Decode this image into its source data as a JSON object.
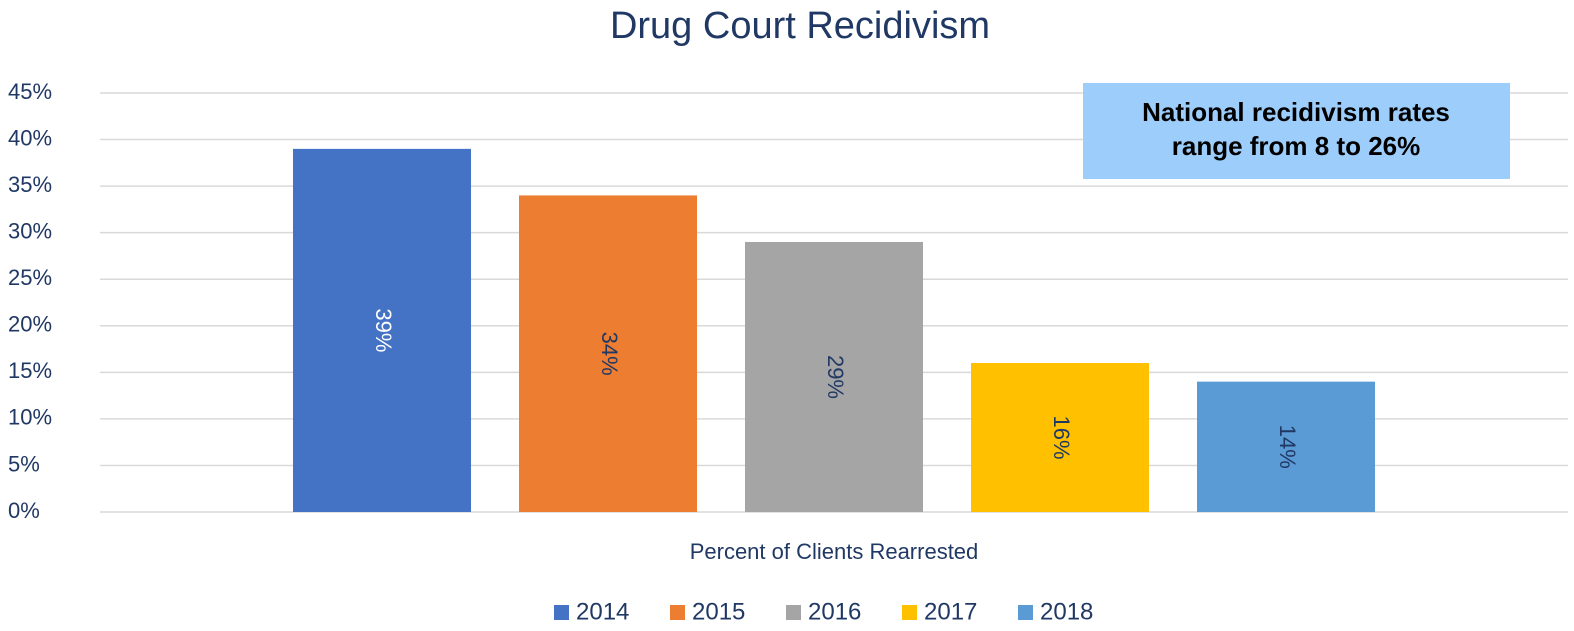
{
  "chart_data": {
    "type": "bar",
    "title": "Drug Court Recidivism",
    "categories": [
      "Percent of Clients Rearrested"
    ],
    "series": [
      {
        "name": "2014",
        "color": "#4472c4",
        "label_color": "#ffffff",
        "values": [
          39
        ],
        "value_labels": [
          "39%"
        ]
      },
      {
        "name": "2015",
        "color": "#ed7d31",
        "label_color": "#203864",
        "values": [
          34
        ],
        "value_labels": [
          "34%"
        ]
      },
      {
        "name": "2016",
        "color": "#a5a5a5",
        "label_color": "#203864",
        "values": [
          29
        ],
        "value_labels": [
          "29%"
        ]
      },
      {
        "name": "2017",
        "color": "#ffc000",
        "label_color": "#203864",
        "values": [
          16
        ],
        "value_labels": [
          "16%"
        ]
      },
      {
        "name": "2018",
        "color": "#5b9bd5",
        "label_color": "#203864",
        "values": [
          14
        ],
        "value_labels": [
          "14%"
        ]
      }
    ],
    "ylim": [
      0,
      45
    ],
    "yticks": [
      {
        "value": 0,
        "label": "0%"
      },
      {
        "value": 5,
        "label": "5%"
      },
      {
        "value": 10,
        "label": "10%"
      },
      {
        "value": 15,
        "label": "15%"
      },
      {
        "value": 20,
        "label": "20%"
      },
      {
        "value": 25,
        "label": "25%"
      },
      {
        "value": 30,
        "label": "30%"
      },
      {
        "value": 35,
        "label": "35%"
      },
      {
        "value": 40,
        "label": "40%"
      },
      {
        "value": 45,
        "label": "45%"
      }
    ],
    "grid": true,
    "legend": "bottom",
    "annotation": {
      "lines": [
        "National recidivism rates",
        "range from 8 to 26%"
      ],
      "color": "#9dcdfb"
    }
  }
}
